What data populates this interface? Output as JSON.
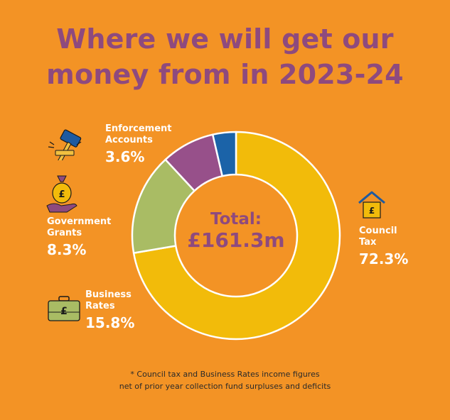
{
  "title": {
    "line1": "Where we will get our",
    "line2": "money from in 2023-24"
  },
  "chart_data": {
    "type": "pie",
    "donut": true,
    "center_label": {
      "line1": "Total:",
      "line2": "£161.3m"
    },
    "categories": [
      "Council Tax",
      "Business Rates",
      "Government Grants",
      "Enforcement Accounts"
    ],
    "values": [
      72.3,
      15.8,
      8.3,
      3.6
    ],
    "value_labels": [
      "72.3%",
      "15.8%",
      "8.3%",
      "3.6%"
    ],
    "colors": [
      "#F2BB0A",
      "#A9BC64",
      "#97508A",
      "#1B63A8"
    ],
    "legend_placement": "labels around chart"
  },
  "labels": {
    "enforcement": {
      "line1": "Enforcement",
      "line2": "Accounts",
      "pct": "3.6%",
      "icon": "gavel-icon"
    },
    "government": {
      "line1": "Government",
      "line2": "Grants",
      "pct": "8.3%",
      "icon": "money-bag-hand-icon"
    },
    "business": {
      "line1": "Business",
      "line2": "Rates",
      "pct": "15.8%",
      "icon": "briefcase-pound-icon"
    },
    "council": {
      "line1": "Council",
      "line2": "Tax",
      "pct": "72.3%",
      "icon": "house-pound-icon"
    }
  },
  "icon_text": {
    "pound": "£"
  },
  "footnote": {
    "line1": "* Council tax and Business Rates income figures",
    "line2": "net of prior year collection fund surpluses and deficits"
  }
}
